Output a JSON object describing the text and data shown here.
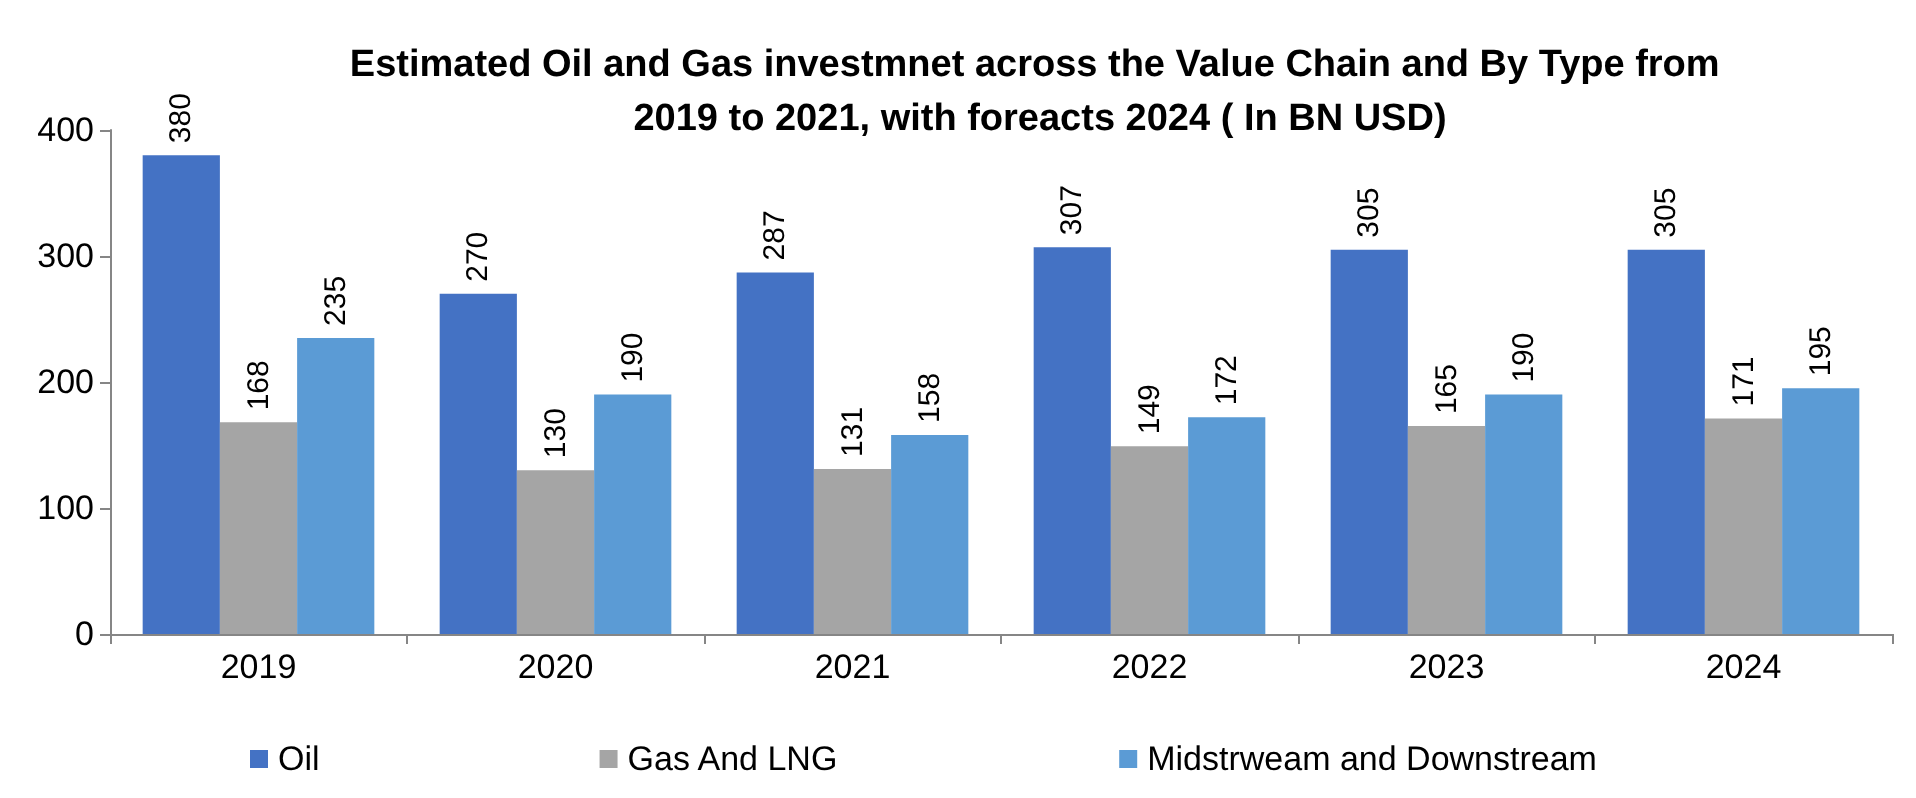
{
  "chart_data": {
    "type": "bar",
    "title": "Estimated Oil and Gas investmnet across the Value Chain and By Type from 2019 to 2021, with foreacts 2024 ( In BN USD)",
    "categories": [
      "2019",
      "2020",
      "2021",
      "2022",
      "2023",
      "2024"
    ],
    "series": [
      {
        "name": "Oil",
        "color": "#4472c4",
        "values": [
          380,
          270,
          287,
          307,
          305,
          305
        ]
      },
      {
        "name": "Gas And LNG",
        "color": "#a5a5a5",
        "values": [
          168,
          130,
          131,
          149,
          165,
          171
        ]
      },
      {
        "name": "Midstrweam and Downstream",
        "color": "#5b9bd5",
        "values": [
          235,
          190,
          158,
          172,
          190,
          195
        ]
      }
    ],
    "ylim": [
      0,
      400
    ],
    "yticks": [
      0,
      100,
      200,
      300,
      400
    ],
    "grid": false,
    "legend": "bottom left",
    "data_labels": true
  }
}
